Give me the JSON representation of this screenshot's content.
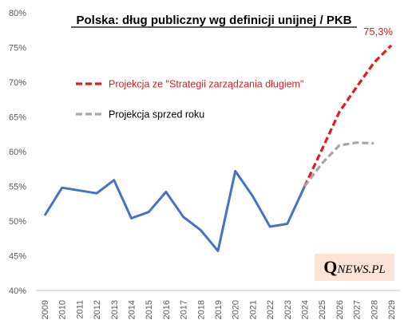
{
  "chart_data": {
    "type": "line",
    "title": "Polska: dług publiczny wg definicji unijnej / PKB",
    "xlabel": "",
    "ylabel": "",
    "x": [
      2009,
      2010,
      2011,
      2012,
      2013,
      2014,
      2015,
      2016,
      2017,
      2018,
      2019,
      2020,
      2021,
      2022,
      2023,
      2024,
      2025,
      2026,
      2027,
      2028,
      2029
    ],
    "ylim": [
      40,
      80
    ],
    "yticks": [
      "40%",
      "45%",
      "50%",
      "55%",
      "60%",
      "65%",
      "70%",
      "75%",
      "80%"
    ],
    "yticks_values": [
      40,
      45,
      50,
      55,
      60,
      65,
      70,
      75,
      80
    ],
    "grid": false,
    "series": [
      {
        "name": "",
        "color": "#4472c4",
        "style": "solid",
        "x": [
          2009,
          2010,
          2011,
          2012,
          2013,
          2014,
          2015,
          2016,
          2017,
          2018,
          2019,
          2020,
          2021,
          2022,
          2023,
          2024
        ],
        "values": [
          50.8,
          54.8,
          54.4,
          54.0,
          55.9,
          50.4,
          51.3,
          54.2,
          50.6,
          48.7,
          45.7,
          57.2,
          53.6,
          49.2,
          49.6,
          55.0
        ]
      },
      {
        "name": "Projekcja ze \"Strategii zarządzania długiem\"",
        "color": "#e41a1c",
        "style": "dashed",
        "x": [
          2024,
          2025,
          2026,
          2027,
          2028,
          2029
        ],
        "values": [
          55.0,
          60.3,
          65.7,
          69.3,
          72.8,
          75.3
        ]
      },
      {
        "name": "Projekcja sprzed roku",
        "color": "#a6a6a6",
        "style": "dashed",
        "x": [
          2024,
          2025,
          2026,
          2027,
          2028
        ],
        "values": [
          55.0,
          58.3,
          60.9,
          61.3,
          61.2
        ]
      }
    ],
    "annotations": [
      {
        "text": "75,3%",
        "x": 2029,
        "y": 75.3,
        "color": "#e41a1c"
      }
    ],
    "legend_position": "top-left"
  },
  "logo": {
    "q": "Q",
    "rest": "NEWS.PL"
  }
}
